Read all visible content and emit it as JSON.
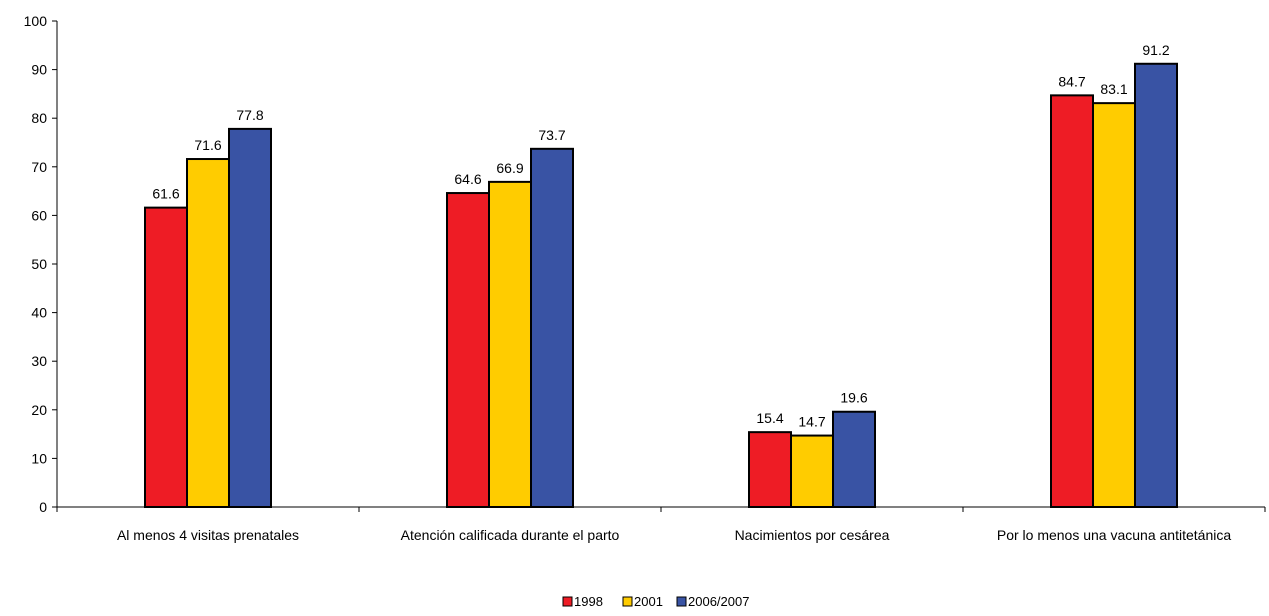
{
  "chart_data": {
    "type": "bar",
    "title": "",
    "xlabel": "",
    "ylabel": "",
    "ylim": [
      0,
      100
    ],
    "yticks": [
      0,
      10,
      20,
      30,
      40,
      50,
      60,
      70,
      80,
      90,
      100
    ],
    "grid": false,
    "legend_position": "bottom-center",
    "categories": [
      "Al menos 4 visitas prenatales",
      "Atención calificada durante el parto",
      "Nacimientos por cesárea",
      "Por lo menos una vacuna antitetánica"
    ],
    "series": [
      {
        "name": "1998",
        "color": "#ee1c25",
        "values": [
          61.6,
          64.6,
          15.4,
          84.7
        ],
        "labels": [
          "61.6",
          "64.6",
          "15.4",
          "84.7"
        ]
      },
      {
        "name": "2001",
        "color": "#ffcc00",
        "values": [
          71.6,
          66.9,
          14.7,
          83.1
        ],
        "labels": [
          "71.6",
          "66.9",
          "14.7",
          "83.1"
        ]
      },
      {
        "name": "2006/2007",
        "color": "#3953a4",
        "values": [
          77.8,
          73.7,
          19.6,
          91.2
        ],
        "labels": [
          "77.8",
          "73.7",
          "19.6",
          "91.2"
        ]
      }
    ]
  }
}
